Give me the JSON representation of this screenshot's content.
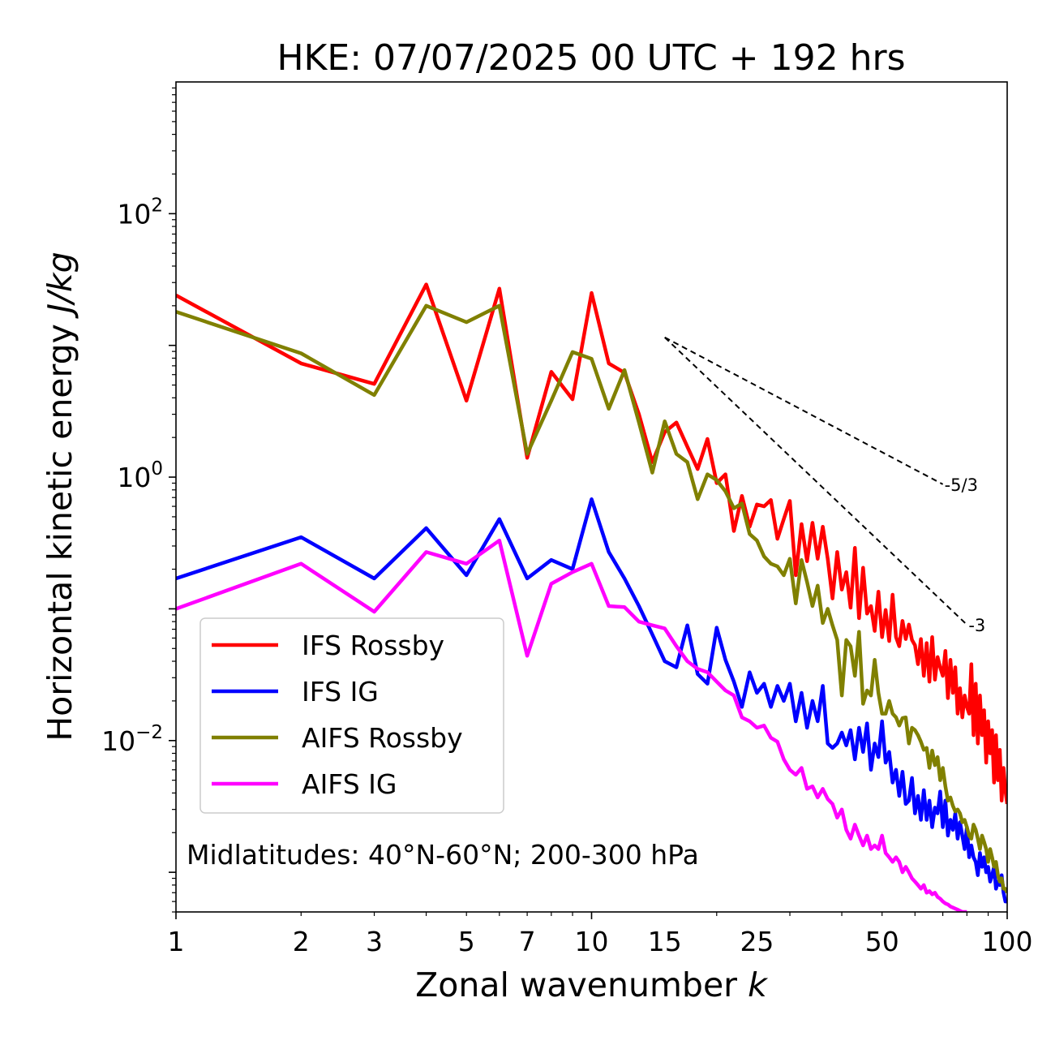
{
  "chart_data": {
    "type": "line",
    "title": "HKE: 07/07/2025 00 UTC + 192 hrs",
    "xlabel": "Zonal wavenumber ",
    "xlabel_italic": "k",
    "ylabel": "Horizontal kinetic energy ",
    "ylabel_italic": "J/kg",
    "x_scale": "log",
    "y_scale": "log",
    "xlim": [
      1,
      100
    ],
    "ylim": [
      0.0005,
      1000
    ],
    "grid": false,
    "legend_position": "lower-left",
    "annotation": "Midlatitudes: 40°N-60°N; 200-300 hPa",
    "x_ticks": [
      {
        "value": 1,
        "label": "1"
      },
      {
        "value": 2,
        "label": "2"
      },
      {
        "value": 3,
        "label": "3"
      },
      {
        "value": 5,
        "label": "5"
      },
      {
        "value": 7,
        "label": "7"
      },
      {
        "value": 10,
        "label": "10"
      },
      {
        "value": 15,
        "label": "15"
      },
      {
        "value": 25,
        "label": "25"
      },
      {
        "value": 50,
        "label": "50"
      },
      {
        "value": 100,
        "label": "100"
      }
    ],
    "y_ticks": [
      {
        "value": 100,
        "base": "10",
        "exp": "2"
      },
      {
        "value": 1,
        "base": "10",
        "exp": "0"
      },
      {
        "value": 0.01,
        "base": "10",
        "exp": "−2"
      }
    ],
    "reference_lines": [
      {
        "label": "-5/3",
        "slope": -1.6667,
        "x_start": 15,
        "x_end": 70,
        "y_start": 11.5
      },
      {
        "label": "-3",
        "slope": -3,
        "x_start": 15,
        "x_end": 80,
        "y_start": 11.5
      }
    ],
    "series": [
      {
        "name": "IFS Rossby",
        "color": "#ff0000",
        "x": [
          1,
          2,
          3,
          4,
          5,
          6,
          7,
          8,
          9,
          10,
          11,
          12,
          13,
          14,
          15,
          16,
          17,
          18,
          19,
          20,
          21,
          22,
          23,
          24,
          25,
          26,
          27,
          28,
          29,
          30,
          31,
          32,
          33,
          34,
          35,
          36,
          37,
          38,
          39,
          40,
          41,
          42,
          43,
          44,
          45,
          46,
          47,
          48,
          49,
          50,
          51,
          52,
          53,
          54,
          55,
          56,
          57,
          58,
          59,
          60,
          61,
          62,
          63,
          64,
          65,
          66,
          67,
          68,
          69,
          70,
          71,
          72,
          73,
          74,
          75,
          76,
          77,
          78,
          79,
          80,
          81,
          82,
          83,
          84,
          85,
          86,
          87,
          88,
          89,
          90,
          91,
          92,
          93,
          94,
          95,
          96,
          97,
          98,
          99,
          100
        ],
        "y": [
          24,
          7.3,
          5.1,
          29,
          3.8,
          27,
          1.4,
          6.3,
          3.9,
          25,
          7.3,
          6.2,
          3.0,
          1.3,
          2.2,
          2.6,
          1.7,
          1.15,
          1.95,
          0.9,
          1.05,
          0.39,
          0.72,
          0.42,
          0.62,
          0.6,
          0.67,
          0.34,
          0.48,
          0.66,
          0.18,
          0.44,
          0.23,
          0.45,
          0.24,
          0.42,
          0.24,
          0.12,
          0.27,
          0.14,
          0.19,
          0.102,
          0.29,
          0.085,
          0.205,
          0.092,
          0.105,
          0.068,
          0.135,
          0.061,
          0.098,
          0.057,
          0.128,
          0.061,
          0.052,
          0.081,
          0.059,
          0.076,
          0.058,
          0.053,
          0.038,
          0.059,
          0.031,
          0.055,
          0.028,
          0.061,
          0.029,
          0.043,
          0.036,
          0.031,
          0.048,
          0.021,
          0.041,
          0.023,
          0.036,
          0.016,
          0.025,
          0.015,
          0.022,
          0.018,
          0.016,
          0.038,
          0.011,
          0.027,
          0.0095,
          0.022,
          0.011,
          0.017,
          0.0068,
          0.014,
          0.008,
          0.012,
          0.0048,
          0.011,
          0.005,
          0.0085,
          0.0035,
          0.0062,
          0.0042,
          0.0033
        ]
      },
      {
        "name": "IFS IG",
        "color": "#0000ff",
        "x": [
          1,
          2,
          3,
          4,
          5,
          6,
          7,
          8,
          9,
          10,
          11,
          12,
          13,
          14,
          15,
          16,
          17,
          18,
          19,
          20,
          21,
          22,
          23,
          24,
          25,
          26,
          27,
          28,
          29,
          30,
          31,
          32,
          33,
          34,
          35,
          36,
          37,
          38,
          39,
          40,
          41,
          42,
          43,
          44,
          45,
          46,
          47,
          48,
          49,
          50,
          51,
          52,
          53,
          54,
          55,
          56,
          57,
          58,
          59,
          60,
          61,
          62,
          63,
          64,
          65,
          66,
          67,
          68,
          69,
          70,
          71,
          72,
          73,
          74,
          75,
          76,
          77,
          78,
          79,
          80,
          81,
          82,
          83,
          84,
          85,
          86,
          87,
          88,
          89,
          90,
          91,
          92,
          93,
          94,
          95,
          96,
          97,
          98,
          99,
          100
        ],
        "y": [
          0.17,
          0.35,
          0.17,
          0.41,
          0.18,
          0.48,
          0.17,
          0.235,
          0.2,
          0.68,
          0.27,
          0.17,
          0.105,
          0.064,
          0.04,
          0.036,
          0.075,
          0.032,
          0.027,
          0.072,
          0.041,
          0.028,
          0.018,
          0.033,
          0.023,
          0.027,
          0.018,
          0.026,
          0.02,
          0.027,
          0.014,
          0.023,
          0.0125,
          0.02,
          0.014,
          0.026,
          0.0095,
          0.0088,
          0.0095,
          0.0115,
          0.0092,
          0.012,
          0.0072,
          0.0125,
          0.0082,
          0.0135,
          0.006,
          0.0095,
          0.0075,
          0.014,
          0.0068,
          0.0082,
          0.0048,
          0.006,
          0.0038,
          0.0058,
          0.0033,
          0.0035,
          0.0052,
          0.0028,
          0.0038,
          0.0025,
          0.0042,
          0.0025,
          0.0035,
          0.0022,
          0.0031,
          0.0028,
          0.0041,
          0.0022,
          0.0035,
          0.0019,
          0.0025,
          0.0021,
          0.0028,
          0.0018,
          0.0024,
          0.0019,
          0.0015,
          0.0022,
          0.0013,
          0.0016,
          0.0013,
          0.0012,
          0.00095,
          0.0014,
          0.0011,
          0.0013,
          0.001,
          0.0011,
          0.00085,
          0.00095,
          0.0011,
          0.00075,
          0.00085,
          0.0008,
          0.00095,
          0.0007,
          0.0006,
          0.0006
        ]
      },
      {
        "name": "AIFS Rossby",
        "color": "#808000",
        "x": [
          1,
          2,
          3,
          4,
          5,
          6,
          7,
          8,
          9,
          10,
          11,
          12,
          13,
          14,
          15,
          16,
          17,
          18,
          19,
          20,
          21,
          22,
          23,
          24,
          25,
          26,
          27,
          28,
          29,
          30,
          31,
          32,
          33,
          34,
          35,
          36,
          37,
          38,
          39,
          40,
          41,
          42,
          43,
          44,
          45,
          46,
          47,
          48,
          49,
          50,
          51,
          52,
          53,
          54,
          55,
          56,
          57,
          58,
          59,
          60,
          61,
          62,
          63,
          64,
          65,
          66,
          67,
          68,
          69,
          70,
          71,
          72,
          73,
          74,
          75,
          76,
          77,
          78,
          79,
          80,
          81,
          82,
          83,
          84,
          85,
          86,
          87,
          88,
          89,
          90,
          91,
          92,
          93,
          94,
          95,
          96,
          97,
          98,
          99,
          100
        ],
        "y": [
          18,
          8.7,
          4.2,
          20,
          15,
          20,
          1.5,
          3.8,
          8.9,
          7.9,
          3.3,
          6.5,
          2.6,
          1.08,
          2.65,
          1.5,
          1.3,
          0.68,
          1.05,
          0.95,
          0.78,
          0.58,
          0.63,
          0.37,
          0.33,
          0.25,
          0.22,
          0.21,
          0.18,
          0.24,
          0.11,
          0.235,
          0.16,
          0.105,
          0.15,
          0.078,
          0.1,
          0.075,
          0.058,
          0.022,
          0.058,
          0.052,
          0.031,
          0.067,
          0.019,
          0.024,
          0.022,
          0.041,
          0.023,
          0.016,
          0.016,
          0.02,
          0.016,
          0.015,
          0.013,
          0.0148,
          0.015,
          0.0095,
          0.0125,
          0.012,
          0.011,
          0.0098,
          0.0085,
          0.0088,
          0.0062,
          0.0084,
          0.0065,
          0.0075,
          0.005,
          0.0062,
          0.0045,
          0.0035,
          0.0037,
          0.0032,
          0.0029,
          0.003,
          0.0028,
          0.0024,
          0.0025,
          0.0022,
          0.0019,
          0.0018,
          0.0023,
          0.0021,
          0.0018,
          0.0015,
          0.0019,
          0.0017,
          0.0015,
          0.0012,
          0.0015,
          0.0013,
          0.0011,
          0.0012,
          0.00095,
          0.00085,
          0.0009,
          0.00075,
          0.00075,
          0.0007
        ]
      },
      {
        "name": "AIFS IG",
        "color": "#ff00ff",
        "x": [
          1,
          2,
          3,
          4,
          5,
          6,
          7,
          8,
          9,
          10,
          11,
          12,
          13,
          14,
          15,
          16,
          17,
          18,
          19,
          20,
          21,
          22,
          23,
          24,
          25,
          26,
          27,
          28,
          29,
          30,
          31,
          32,
          33,
          34,
          35,
          36,
          37,
          38,
          39,
          40,
          41,
          42,
          43,
          44,
          45,
          46,
          47,
          48,
          49,
          50,
          51,
          52,
          53,
          54,
          55,
          56,
          57,
          58,
          59,
          60,
          61,
          62,
          63,
          64,
          65,
          66,
          67,
          68,
          69,
          70,
          71,
          72,
          73,
          74,
          75,
          76,
          77,
          78,
          79,
          80
        ],
        "y": [
          0.1,
          0.22,
          0.095,
          0.27,
          0.22,
          0.33,
          0.044,
          0.155,
          0.19,
          0.22,
          0.105,
          0.103,
          0.08,
          0.075,
          0.071,
          0.052,
          0.04,
          0.035,
          0.033,
          0.028,
          0.024,
          0.022,
          0.015,
          0.014,
          0.0125,
          0.013,
          0.0105,
          0.0098,
          0.0072,
          0.006,
          0.0055,
          0.0062,
          0.0043,
          0.0045,
          0.0037,
          0.0043,
          0.0036,
          0.0033,
          0.0026,
          0.003,
          0.0021,
          0.0018,
          0.0023,
          0.0019,
          0.0016,
          0.0019,
          0.0015,
          0.0016,
          0.0015,
          0.0019,
          0.0014,
          0.0013,
          0.0012,
          0.0013,
          0.0012,
          0.001,
          0.0011,
          0.001,
          0.0009,
          0.00085,
          0.0008,
          0.00075,
          0.0008,
          0.0007,
          0.00072,
          0.00068,
          0.0007,
          0.00065,
          0.00063,
          0.0006,
          0.00058,
          0.00057,
          0.00055,
          0.00054,
          0.00053,
          0.00052,
          0.00051,
          0.0005,
          0.0005,
          0.0005
        ]
      }
    ]
  }
}
